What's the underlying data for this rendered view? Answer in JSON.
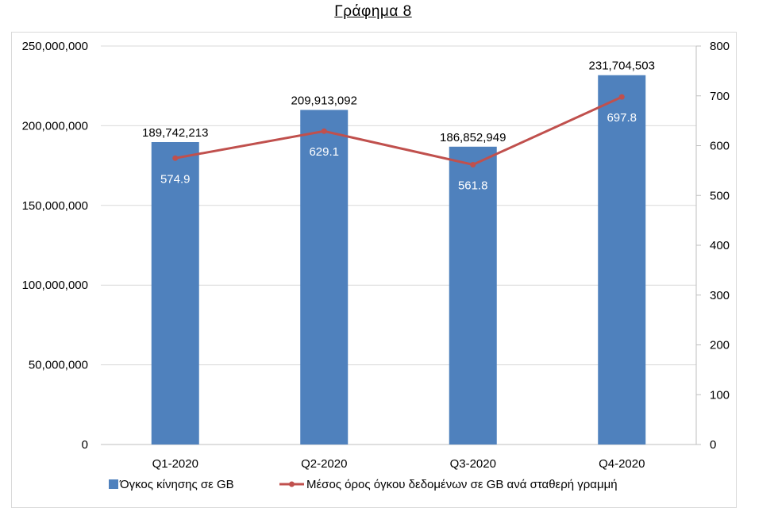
{
  "title": "Γράφημα 8",
  "chart_data": {
    "type": "bar",
    "categories": [
      "Q1-2020",
      "Q2-2020",
      "Q3-2020",
      "Q4-2020"
    ],
    "series": [
      {
        "name": "Όγκος κίνησης σε GB",
        "type": "bar",
        "axis": "left",
        "color": "#4f81bd",
        "values": [
          189742213,
          209913092,
          186852949,
          231704503
        ],
        "labels": [
          "189,742,213",
          "209,913,092",
          "186,852,949",
          "231,704,503"
        ]
      },
      {
        "name": "Μέσος όρος όγκου δεδομένων σε GB ανά σταθερή γραμμή",
        "type": "line",
        "axis": "right",
        "color": "#c0504d",
        "values": [
          574.9,
          629.1,
          561.8,
          697.8
        ],
        "labels": [
          "574.9",
          "629.1",
          "561.8",
          "697.8"
        ]
      }
    ],
    "y_left": {
      "ylim": [
        0,
        250000000
      ],
      "ticks": [
        0,
        50000000,
        100000000,
        150000000,
        200000000,
        250000000
      ],
      "tick_labels": [
        "0",
        "50,000,000",
        "100,000,000",
        "150,000,000",
        "200,000,000",
        "250,000,000"
      ]
    },
    "y_right": {
      "ylim": [
        0,
        800
      ],
      "ticks": [
        0,
        100,
        200,
        300,
        400,
        500,
        600,
        700,
        800
      ],
      "tick_labels": [
        "0",
        "100",
        "200",
        "300",
        "400",
        "500",
        "600",
        "700",
        "800"
      ]
    },
    "grid": true,
    "legend_position": "bottom"
  }
}
